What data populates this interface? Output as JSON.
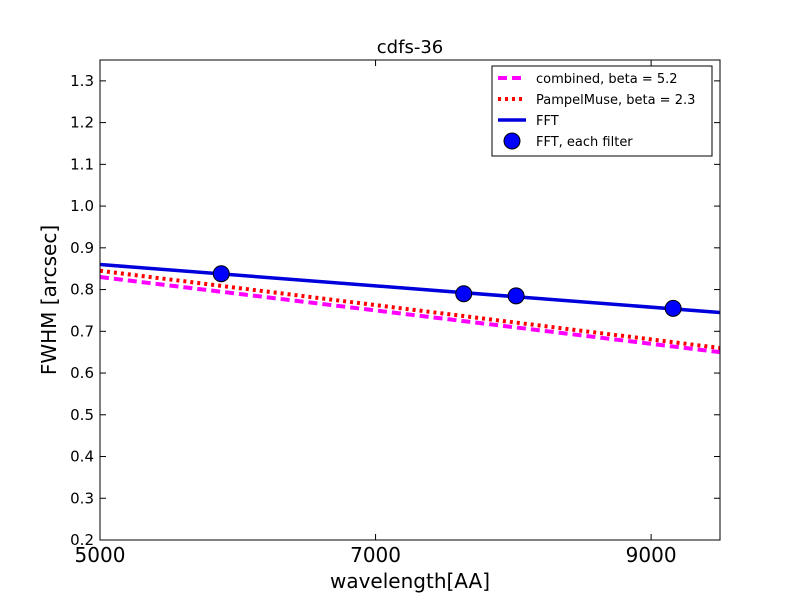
{
  "chart_data": {
    "type": "line",
    "title": "cdfs-36",
    "xlabel": "wavelength[AA]",
    "ylabel": "FWHM [arcsec]",
    "xlim": [
      5000,
      9500
    ],
    "ylim": [
      0.2,
      1.35
    ],
    "xticks": [
      5000,
      7000,
      9000
    ],
    "yticks": [
      0.2,
      0.3,
      0.4,
      0.5,
      0.6,
      0.7,
      0.8,
      0.9,
      1.0,
      1.1,
      1.2,
      1.3
    ],
    "ytick_labels": [
      "0.2",
      "0.3",
      "0.4",
      "0.5",
      "0.6",
      "0.7",
      "0.8",
      "0.9",
      "1.0",
      "1.1",
      "1.2",
      "1.3"
    ],
    "grid": false,
    "legend_position": "top-right",
    "series": [
      {
        "name": "combined, beta = 5.2",
        "kind": "line",
        "style": "dashed",
        "color": "#ff00ff",
        "x": [
          5000,
          9500
        ],
        "y": [
          0.83,
          0.65
        ]
      },
      {
        "name": "PampelMuse, beta = 2.3",
        "kind": "line",
        "style": "dotted",
        "color": "#ff0000",
        "x": [
          5000,
          9500
        ],
        "y": [
          0.845,
          0.66
        ]
      },
      {
        "name": "FFT",
        "kind": "line",
        "style": "solid",
        "color": "#0000dd",
        "x": [
          5000,
          9500
        ],
        "y": [
          0.86,
          0.745
        ]
      },
      {
        "name": "FFT, each filter",
        "kind": "scatter",
        "color": "#0000ff",
        "x": [
          5880,
          7640,
          8020,
          9160
        ],
        "y": [
          0.838,
          0.79,
          0.785,
          0.755
        ]
      }
    ]
  }
}
